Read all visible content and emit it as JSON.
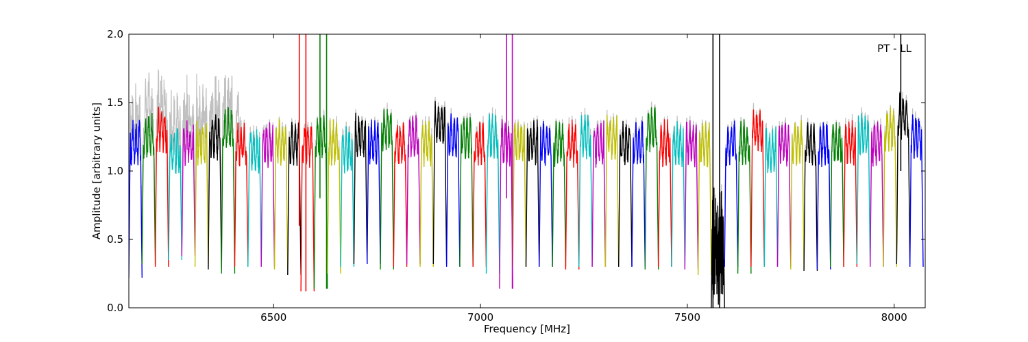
{
  "chart_data": {
    "type": "line",
    "title": "",
    "xlabel": "Frequency [MHz]",
    "ylabel": "Amplitude [arbitrary units]",
    "xlim": [
      6150,
      8075
    ],
    "ylim": [
      0.0,
      2.0
    ],
    "x_ticks": [
      6500,
      7000,
      7500,
      8000
    ],
    "x_tick_labels": [
      "6500",
      "7000",
      "7500",
      "8000"
    ],
    "y_ticks": [
      0.0,
      0.5,
      1.0,
      1.5,
      2.0
    ],
    "y_tick_labels": [
      "0.0",
      "0.5",
      "1.0",
      "1.5",
      "2.0"
    ],
    "annotation": "PT - LL",
    "grid": false,
    "legend": "none",
    "colors": [
      "#0000ff",
      "#008000",
      "#ff0000",
      "#00bfbf",
      "#bf00bf",
      "#bfbf00",
      "#000000"
    ],
    "raw_color": "#c0c0c0",
    "spectral_window_mhz": 32,
    "series": [
      {
        "x_start": 6150,
        "color": "#0000ff",
        "notch_min": 0.22,
        "level": 1.2
      },
      {
        "x_start": 6182,
        "color": "#008000",
        "notch_min": 0.32,
        "level": 1.25
      },
      {
        "x_start": 6214,
        "color": "#ff0000",
        "notch_min": 0.3,
        "level": 1.3
      },
      {
        "x_start": 6246,
        "color": "#00bfbf",
        "notch_min": 0.35,
        "level": 1.15
      },
      {
        "x_start": 6278,
        "color": "#bf00bf",
        "notch_min": 0.38,
        "level": 1.2
      },
      {
        "x_start": 6310,
        "color": "#bfbf00",
        "notch_min": 0.3,
        "level": 1.2
      },
      {
        "x_start": 6342,
        "color": "#000000",
        "notch_min": 0.28,
        "level": 1.25
      },
      {
        "x_start": 6374,
        "color": "#008000",
        "notch_min": 0.25,
        "level": 1.3
      },
      {
        "x_start": 6406,
        "color": "#ff0000",
        "notch_min": 0.3,
        "level": 1.2
      },
      {
        "x_start": 6438,
        "color": "#00bfbf",
        "notch_min": 0.3,
        "level": 1.15
      },
      {
        "x_start": 6470,
        "color": "#bf00bf",
        "notch_min": 0.3,
        "level": 1.2
      },
      {
        "x_start": 6502,
        "color": "#bfbf00",
        "notch_min": 0.28,
        "level": 1.2
      },
      {
        "x_start": 6534,
        "color": "#000000",
        "notch_min": 0.24,
        "level": 1.2
      },
      {
        "x_start": 6566,
        "color": "#ff0000",
        "notch_min": 0.12,
        "level": 1.2
      },
      {
        "x_start": 6598,
        "color": "#008000",
        "notch_min": 0.14,
        "level": 1.25
      },
      {
        "x_start": 6630,
        "color": "#bfbf00",
        "notch_min": 0.25,
        "level": 1.2
      },
      {
        "x_start": 6662,
        "color": "#00bfbf",
        "notch_min": 0.3,
        "level": 1.15
      },
      {
        "x_start": 6694,
        "color": "#000000",
        "notch_min": 0.32,
        "level": 1.25
      },
      {
        "x_start": 6726,
        "color": "#0000ff",
        "notch_min": 0.32,
        "level": 1.2
      },
      {
        "x_start": 6758,
        "color": "#008000",
        "notch_min": 0.28,
        "level": 1.3
      },
      {
        "x_start": 6790,
        "color": "#ff0000",
        "notch_min": 0.3,
        "level": 1.2
      },
      {
        "x_start": 6822,
        "color": "#bf00bf",
        "notch_min": 0.32,
        "level": 1.25
      },
      {
        "x_start": 6854,
        "color": "#bfbf00",
        "notch_min": 0.3,
        "level": 1.2
      },
      {
        "x_start": 6886,
        "color": "#000000",
        "notch_min": 0.32,
        "level": 1.35
      },
      {
        "x_start": 6918,
        "color": "#0000ff",
        "notch_min": 0.3,
        "level": 1.25
      },
      {
        "x_start": 6950,
        "color": "#008000",
        "notch_min": 0.3,
        "level": 1.25
      },
      {
        "x_start": 6982,
        "color": "#ff0000",
        "notch_min": 0.3,
        "level": 1.2
      },
      {
        "x_start": 7014,
        "color": "#00bfbf",
        "notch_min": 0.25,
        "level": 1.25
      },
      {
        "x_start": 7046,
        "color": "#bf00bf",
        "notch_min": 0.14,
        "level": 1.2
      },
      {
        "x_start": 7078,
        "color": "#bfbf00",
        "notch_min": 0.3,
        "level": 1.2
      },
      {
        "x_start": 7110,
        "color": "#000000",
        "notch_min": 0.3,
        "level": 1.2
      },
      {
        "x_start": 7142,
        "color": "#0000ff",
        "notch_min": 0.3,
        "level": 1.2
      },
      {
        "x_start": 7174,
        "color": "#008000",
        "notch_min": 0.3,
        "level": 1.2
      },
      {
        "x_start": 7206,
        "color": "#ff0000",
        "notch_min": 0.28,
        "level": 1.2
      },
      {
        "x_start": 7238,
        "color": "#00bfbf",
        "notch_min": 0.3,
        "level": 1.25
      },
      {
        "x_start": 7270,
        "color": "#bf00bf",
        "notch_min": 0.3,
        "level": 1.2
      },
      {
        "x_start": 7302,
        "color": "#bfbf00",
        "notch_min": 0.3,
        "level": 1.25
      },
      {
        "x_start": 7334,
        "color": "#000000",
        "notch_min": 0.3,
        "level": 1.2
      },
      {
        "x_start": 7366,
        "color": "#0000ff",
        "notch_min": 0.3,
        "level": 1.2
      },
      {
        "x_start": 7398,
        "color": "#008000",
        "notch_min": 0.28,
        "level": 1.3
      },
      {
        "x_start": 7430,
        "color": "#ff0000",
        "notch_min": 0.3,
        "level": 1.2
      },
      {
        "x_start": 7462,
        "color": "#00bfbf",
        "notch_min": 0.3,
        "level": 1.2
      },
      {
        "x_start": 7494,
        "color": "#bf00bf",
        "notch_min": 0.28,
        "level": 1.2
      },
      {
        "x_start": 7526,
        "color": "#bfbf00",
        "notch_min": 0.24,
        "level": 1.2
      },
      {
        "x_start": 7558,
        "color": "#000000",
        "notch_min": 0.0,
        "level": 0.9
      },
      {
        "x_start": 7590,
        "color": "#0000ff",
        "notch_min": 0.3,
        "level": 1.2
      },
      {
        "x_start": 7622,
        "color": "#008000",
        "notch_min": 0.25,
        "level": 1.2
      },
      {
        "x_start": 7654,
        "color": "#ff0000",
        "notch_min": 0.3,
        "level": 1.3
      },
      {
        "x_start": 7686,
        "color": "#00bfbf",
        "notch_min": 0.3,
        "level": 1.15
      },
      {
        "x_start": 7718,
        "color": "#bf00bf",
        "notch_min": 0.3,
        "level": 1.2
      },
      {
        "x_start": 7750,
        "color": "#bfbf00",
        "notch_min": 0.28,
        "level": 1.2
      },
      {
        "x_start": 7782,
        "color": "#000000",
        "notch_min": 0.27,
        "level": 1.2
      },
      {
        "x_start": 7814,
        "color": "#0000ff",
        "notch_min": 0.28,
        "level": 1.2
      },
      {
        "x_start": 7846,
        "color": "#008000",
        "notch_min": 0.3,
        "level": 1.2
      },
      {
        "x_start": 7878,
        "color": "#ff0000",
        "notch_min": 0.3,
        "level": 1.2
      },
      {
        "x_start": 7910,
        "color": "#00bfbf",
        "notch_min": 0.32,
        "level": 1.25
      },
      {
        "x_start": 7942,
        "color": "#bf00bf",
        "notch_min": 0.3,
        "level": 1.2
      },
      {
        "x_start": 7974,
        "color": "#bfbf00",
        "notch_min": 0.3,
        "level": 1.3
      },
      {
        "x_start": 8006,
        "color": "#000000",
        "notch_min": 0.32,
        "level": 1.4
      },
      {
        "x_start": 8038,
        "color": "#0000ff",
        "notch_min": 0.3,
        "level": 1.25
      }
    ],
    "spikes": [
      {
        "x": 6562,
        "color": "#ff0000",
        "y_low": 0.6,
        "y_high": 2.0
      },
      {
        "x": 6578,
        "color": "#ff0000",
        "y_low": 0.12,
        "y_high": 2.0
      },
      {
        "x": 6612,
        "color": "#008000",
        "y_low": 0.8,
        "y_high": 2.0
      },
      {
        "x": 6628,
        "color": "#008000",
        "y_low": 0.14,
        "y_high": 2.0
      },
      {
        "x": 7063,
        "color": "#bf00bf",
        "y_low": 0.8,
        "y_high": 2.0
      },
      {
        "x": 7077,
        "color": "#bf00bf",
        "y_low": 0.14,
        "y_high": 2.0
      },
      {
        "x": 7562,
        "color": "#000000",
        "y_low": 0.0,
        "y_high": 2.0
      },
      {
        "x": 7578,
        "color": "#000000",
        "y_low": 0.0,
        "y_high": 2.0
      },
      {
        "x": 8016,
        "color": "#000000",
        "y_low": 1.0,
        "y_high": 2.0
      }
    ]
  }
}
